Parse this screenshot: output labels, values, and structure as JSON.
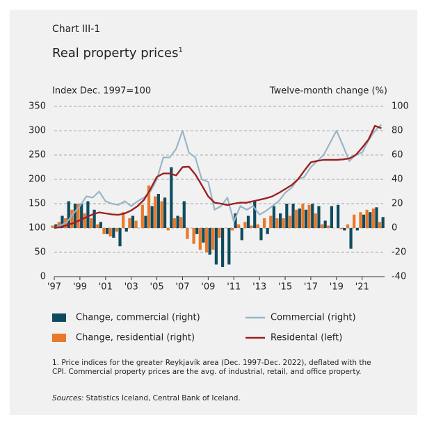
{
  "chart_data": {
    "type": "combo",
    "chart_label": "Chart III-1",
    "title": "Real property prices",
    "title_superscript": "1",
    "ylabel": "Index Dec. 1997=100",
    "y2label": "Twelve-month change (%)",
    "footnote": "1. Price indices for the greater Reykjavík area (Dec. 1997-Dec. 2022), deflated with the CPI. Commercial property prices are the avg. of industrial, retail, and office property.",
    "sources_label": "Sources:",
    "sources": "Statistics Iceland, Central Bank of Iceland.",
    "x": [
      1997,
      1997.5,
      1998,
      1998.5,
      1999,
      1999.5,
      2000,
      2000.5,
      2001,
      2001.5,
      2002,
      2002.5,
      2003,
      2003.5,
      2004,
      2004.5,
      2005,
      2005.5,
      2006,
      2006.5,
      2007,
      2007.5,
      2008,
      2008.5,
      2009,
      2009.5,
      2010,
      2010.5,
      2011,
      2011.5,
      2012,
      2012.5,
      2013,
      2013.5,
      2014,
      2014.5,
      2015,
      2015.5,
      2016,
      2016.5,
      2017,
      2017.5,
      2018,
      2018.5,
      2019,
      2019.5,
      2020,
      2020.5,
      2021,
      2021.5,
      2022,
      2022.5
    ],
    "xlim": [
      1997,
      2022.75
    ],
    "xticks": [
      {
        "value": 1997,
        "label": "'97"
      },
      {
        "value": 1999,
        "label": "'99"
      },
      {
        "value": 2001,
        "label": "'01"
      },
      {
        "value": 2003,
        "label": "'03"
      },
      {
        "value": 2005,
        "label": "'05"
      },
      {
        "value": 2007,
        "label": "'07"
      },
      {
        "value": 2009,
        "label": "'09"
      },
      {
        "value": 2011,
        "label": "'11"
      },
      {
        "value": 2013,
        "label": "'13"
      },
      {
        "value": 2015,
        "label": "'15"
      },
      {
        "value": 2017,
        "label": "'17"
      },
      {
        "value": 2019,
        "label": "'19"
      },
      {
        "value": 2021,
        "label": "'21"
      }
    ],
    "ylim": [
      0,
      350
    ],
    "yticks": [
      0,
      50,
      100,
      150,
      200,
      250,
      300,
      350
    ],
    "y2lim": [
      -40,
      100
    ],
    "y2ticks": [
      -40,
      -20,
      0,
      20,
      40,
      60,
      80,
      100
    ],
    "grid": true,
    "series": [
      {
        "name": "Change, commercial (right)",
        "kind": "bar",
        "axis": "y2",
        "color": "#0e4b5f",
        "values": [
          3,
          10,
          22,
          20,
          20,
          22,
          15,
          5,
          -5,
          -8,
          -15,
          -3,
          10,
          0,
          10,
          18,
          28,
          25,
          50,
          10,
          22,
          0,
          -5,
          -12,
          -22,
          -30,
          -32,
          -30,
          12,
          -10,
          10,
          22,
          -10,
          -5,
          18,
          12,
          20,
          20,
          16,
          15,
          20,
          18,
          6,
          18,
          19,
          -2,
          -17,
          -2,
          11,
          13,
          17,
          9
        ]
      },
      {
        "name": "Change, residential (right)",
        "kind": "bar",
        "axis": "y2",
        "color": "#e8792a",
        "values": [
          2,
          5,
          8,
          15,
          20,
          12,
          8,
          3,
          -5,
          -7,
          -3,
          13,
          8,
          6,
          19,
          35,
          26,
          22,
          -2,
          8,
          9,
          -9,
          -13,
          -18,
          -20,
          -18,
          -8,
          0,
          -2,
          3,
          5,
          2,
          3,
          8,
          10,
          8,
          8,
          10,
          15,
          20,
          19,
          12,
          3,
          2,
          0,
          -1,
          3,
          11,
          13,
          15,
          16,
          5
        ]
      },
      {
        "name": "Commercial (right)",
        "kind": "line",
        "axis": "y2",
        "color": "#97b6c8",
        "values": [
          0,
          2,
          5,
          12,
          18,
          26,
          25,
          30,
          22,
          20,
          19,
          22,
          18,
          22,
          25,
          30,
          40,
          58,
          58,
          65,
          80,
          62,
          58,
          40,
          38,
          15,
          18,
          25,
          5,
          18,
          15,
          18,
          11,
          14,
          18,
          22,
          29,
          33,
          40,
          42,
          50,
          55,
          60,
          70,
          80,
          68,
          55,
          60,
          62,
          72,
          80,
          85
        ]
      },
      {
        "name": "Residental (left)",
        "kind": "line",
        "axis": "y",
        "color": "#9c1f22",
        "values": [
          100,
          102,
          106,
          110,
          116,
          122,
          128,
          132,
          130,
          128,
          127,
          130,
          136,
          145,
          158,
          180,
          205,
          212,
          212,
          208,
          225,
          226,
          210,
          188,
          165,
          152,
          150,
          147,
          150,
          152,
          152,
          155,
          158,
          161,
          165,
          172,
          180,
          188,
          200,
          218,
          235,
          238,
          240,
          240,
          240,
          241,
          243,
          250,
          265,
          282,
          310,
          305
        ]
      }
    ]
  }
}
